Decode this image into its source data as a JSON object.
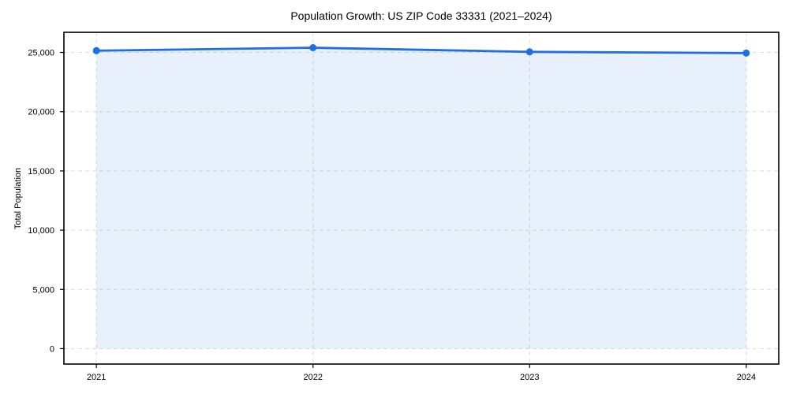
{
  "chart_data": {
    "type": "line",
    "title": "Population Growth: US ZIP Code 33331 (2021–2024)",
    "xlabel": "",
    "ylabel": "Total Population",
    "x": [
      2021,
      2022,
      2023,
      2024
    ],
    "series": [
      {
        "name": "Total Population",
        "values": [
          25150,
          25400,
          25050,
          24950
        ]
      }
    ],
    "area_fill_to_zero": true,
    "xtick_labels": [
      "2021",
      "2022",
      "2023",
      "2024"
    ],
    "ytick_values": [
      0,
      5000,
      10000,
      15000,
      20000,
      25000
    ],
    "ytick_labels": [
      "0",
      "5,000",
      "10,000",
      "15,000",
      "20,000",
      "25,000"
    ],
    "xlim": [
      2020.85,
      2024.15
    ],
    "ylim": [
      -1300,
      26700
    ],
    "grid": true,
    "grid_style": "dashed",
    "legend": false,
    "markers": true,
    "colors": {
      "line": "#1f6fe0",
      "marker": "#1f6fe0",
      "fill": "rgba(31,111,224,0.10)",
      "grid": "#dcdcdc",
      "spine": "#000000",
      "text": "#000000",
      "background": "#ffffff"
    }
  }
}
